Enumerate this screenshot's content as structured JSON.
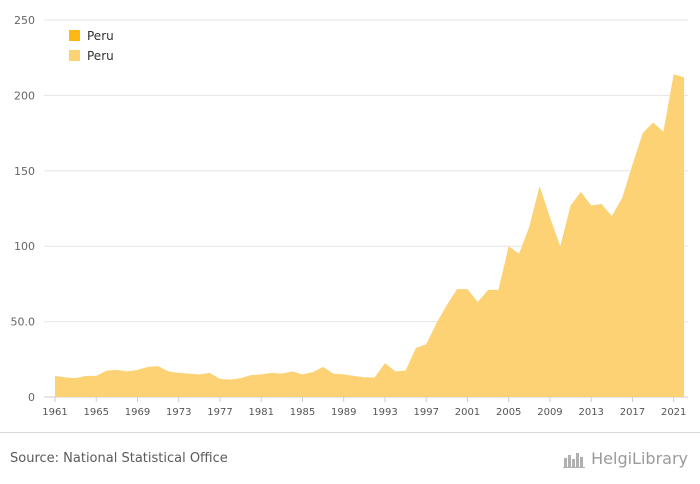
{
  "colors": {
    "series_1": "#FDB813",
    "series_2": "#FCD275",
    "grid": "#e6e6e6",
    "axis": "#cccccc"
  },
  "chart_data": {
    "type": "area",
    "title": "",
    "xlabel": "",
    "ylabel": "",
    "ylim": [
      0,
      250
    ],
    "yticks": [
      0,
      50,
      100,
      150,
      200,
      250
    ],
    "ytick_labels": [
      "0",
      "50.0",
      "100",
      "150",
      "200",
      "250"
    ],
    "xticks": [
      1961,
      1965,
      1969,
      1973,
      1977,
      1981,
      1985,
      1989,
      1993,
      1997,
      2001,
      2005,
      2009,
      2013,
      2017,
      2021
    ],
    "grid": true,
    "legend_position": "top-left",
    "legend": [
      "Peru",
      "Peru"
    ],
    "x": [
      1961,
      1962,
      1963,
      1964,
      1965,
      1966,
      1967,
      1968,
      1969,
      1970,
      1971,
      1972,
      1973,
      1974,
      1975,
      1976,
      1977,
      1978,
      1979,
      1980,
      1981,
      1982,
      1983,
      1984,
      1985,
      1986,
      1987,
      1988,
      1989,
      1990,
      1991,
      1992,
      1993,
      1994,
      1995,
      1996,
      1997,
      1998,
      1999,
      2000,
      2001,
      2002,
      2003,
      2004,
      2005,
      2006,
      2007,
      2008,
      2009,
      2010,
      2011,
      2012,
      2013,
      2014,
      2015,
      2016,
      2017,
      2018,
      2019,
      2020,
      2021,
      2022
    ],
    "series": [
      {
        "name": "Peru",
        "values": [
          14,
          13,
          12.5,
          14,
          14,
          17.5,
          18,
          17,
          18,
          20,
          20.5,
          17,
          16,
          15.5,
          15,
          16,
          12,
          11.5,
          12.5,
          14.5,
          15,
          16,
          15.5,
          17,
          15,
          16.5,
          20,
          15.5,
          15,
          14,
          13,
          13,
          22.5,
          17,
          17.5,
          32.5,
          35,
          49,
          61,
          71.5,
          71.5,
          63,
          71,
          71,
          100,
          95,
          113,
          140,
          119,
          100,
          127,
          136,
          127,
          128,
          120,
          132,
          154,
          175,
          182,
          176,
          214,
          212
        ]
      }
    ]
  },
  "footer": {
    "source": "Source: National Statistical Office",
    "logo_text": "HelgiLibrary"
  }
}
